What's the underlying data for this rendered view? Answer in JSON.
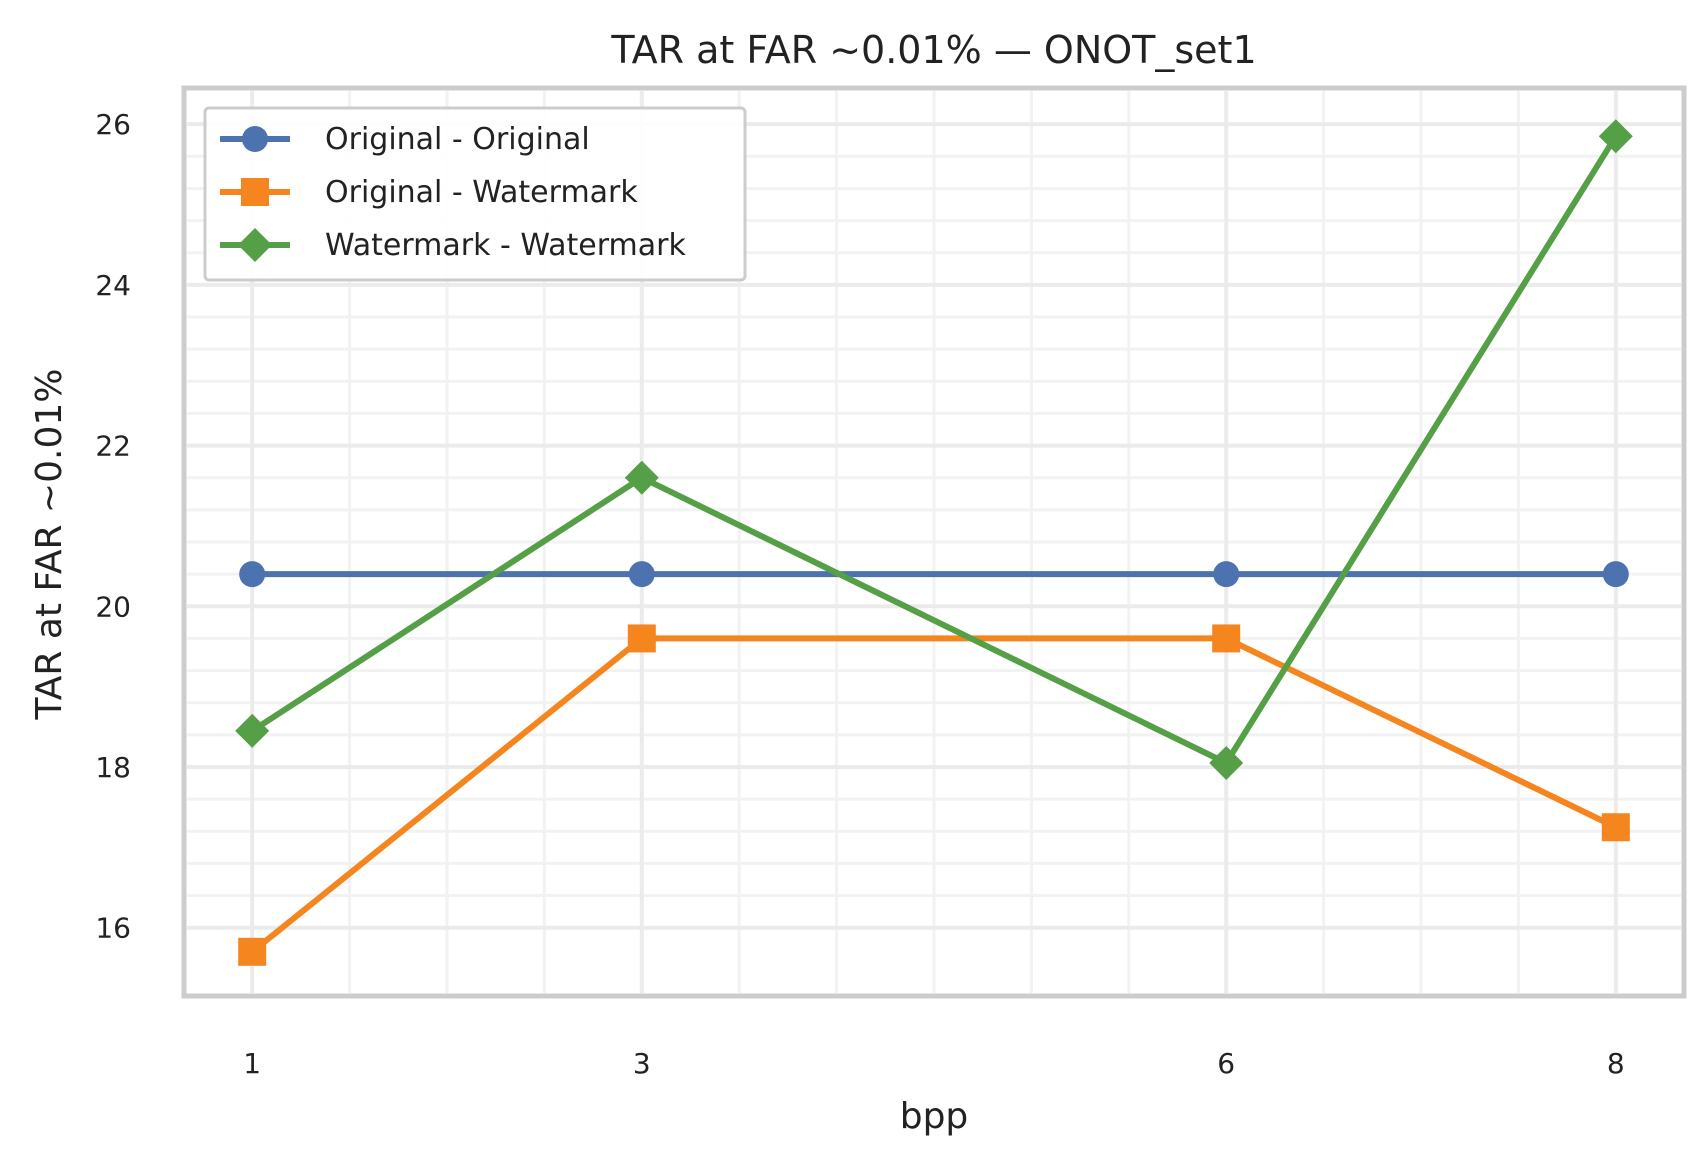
{
  "chart_data": {
    "type": "line",
    "title": "TAR at FAR ~0.01% — ONOT_set1",
    "xlabel": "bpp",
    "ylabel": "TAR at FAR ~0.01%",
    "x": [
      1,
      3,
      6,
      8
    ],
    "x_ticks": [
      "1",
      "3",
      "6",
      "8"
    ],
    "y_ticks": [
      "16",
      "18",
      "20",
      "22",
      "24",
      "26"
    ],
    "xlim": [
      0.65,
      8.35
    ],
    "ylim": [
      15.15,
      26.45
    ],
    "grid": true,
    "legend_position": "top-left",
    "series": [
      {
        "name": "Original - Original",
        "color": "#4c72b0",
        "marker": "circle",
        "values": [
          20.4,
          20.4,
          20.4,
          20.4
        ]
      },
      {
        "name": "Original - Watermark",
        "color": "#f5851f",
        "marker": "square",
        "values": [
          15.7,
          19.6,
          19.6,
          17.25
        ]
      },
      {
        "name": "Watermark - Watermark",
        "color": "#55a047",
        "marker": "diamond",
        "values": [
          18.45,
          21.6,
          18.05,
          25.85
        ]
      }
    ]
  }
}
